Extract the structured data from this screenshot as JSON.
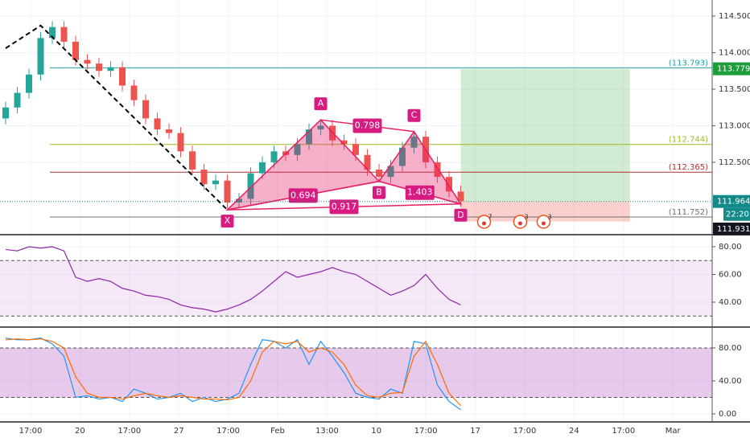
{
  "chart_data": [
    {
      "type": "candlestick",
      "ylim": [
        111.51,
        114.72
      ],
      "yticks": [
        {
          "value": 114.5,
          "label": "114.500"
        },
        {
          "value": 114.0,
          "label": "114.000"
        },
        {
          "value": 113.5,
          "label": "113.500"
        },
        {
          "value": 113.0,
          "label": "113.000"
        },
        {
          "value": 112.5,
          "label": "112.500"
        }
      ],
      "up_color": "#26a69a",
      "down_color": "#ef5350",
      "open": [
        113.1,
        113.25,
        113.45,
        113.7,
        114.2,
        114.35,
        114.15,
        113.9,
        113.85,
        113.75,
        113.8,
        113.55,
        113.35,
        113.1,
        112.95,
        112.9,
        112.65,
        112.4,
        112.2,
        112.25,
        111.95,
        112.0,
        112.35,
        112.5,
        112.65,
        112.6,
        112.75,
        112.95,
        113.0,
        112.8,
        112.75,
        112.6,
        112.4,
        112.3,
        112.45,
        112.7,
        112.85,
        112.5,
        112.3,
        112.1
      ],
      "high": [
        113.33,
        113.53,
        113.78,
        114.28,
        114.43,
        114.43,
        114.23,
        113.98,
        113.93,
        113.88,
        113.88,
        113.63,
        113.43,
        113.18,
        113.03,
        112.98,
        112.73,
        112.48,
        112.33,
        112.33,
        112.08,
        112.43,
        112.58,
        112.73,
        112.73,
        112.83,
        113.03,
        113.08,
        113.08,
        112.88,
        112.83,
        112.68,
        112.48,
        112.53,
        112.78,
        112.93,
        112.93,
        112.58,
        112.38,
        112.18
      ],
      "low": [
        113.02,
        113.17,
        113.37,
        113.62,
        114.12,
        114.07,
        113.82,
        113.77,
        113.67,
        113.67,
        113.47,
        113.27,
        113.02,
        112.87,
        112.82,
        112.57,
        112.32,
        112.12,
        112.12,
        111.87,
        111.87,
        111.92,
        112.27,
        112.42,
        112.52,
        112.52,
        112.67,
        112.87,
        112.72,
        112.67,
        112.52,
        112.32,
        112.22,
        112.22,
        112.37,
        112.62,
        112.42,
        112.22,
        112.02,
        111.89
      ],
      "close": [
        113.25,
        113.45,
        113.7,
        114.2,
        114.35,
        114.15,
        113.9,
        113.85,
        113.75,
        113.8,
        113.55,
        113.35,
        113.1,
        112.95,
        112.9,
        112.65,
        112.4,
        112.2,
        112.25,
        111.95,
        112.0,
        112.35,
        112.5,
        112.65,
        112.6,
        112.75,
        112.95,
        113.0,
        112.8,
        112.75,
        112.6,
        112.4,
        112.3,
        112.45,
        112.7,
        112.85,
        112.5,
        112.3,
        112.1,
        111.97
      ],
      "levels": [
        {
          "value": 113.793,
          "label": "(113.793)",
          "color": "#22a0a0"
        },
        {
          "value": 112.744,
          "label": "(112.744)",
          "color": "#a0b820"
        },
        {
          "value": 112.365,
          "label": "(112.365)",
          "color": "#b03030"
        },
        {
          "value": 111.752,
          "label": "(111.752)",
          "color": "#707070"
        }
      ],
      "price_badges": [
        {
          "value": 113.779,
          "label": "113.779",
          "color": "#1e9e3a"
        },
        {
          "value": 111.964,
          "label": "111.964",
          "color": "#138a8a"
        }
      ],
      "time_badge": "22:20",
      "last_badge": "111.931",
      "trend": {
        "x": [
          0,
          3,
          19
        ],
        "y": [
          114.06,
          114.37,
          111.85
        ]
      },
      "pattern": {
        "names": [
          "X",
          "A",
          "B",
          "C",
          "D"
        ],
        "x": [
          19,
          27,
          32,
          35,
          39
        ],
        "y": [
          111.85,
          113.08,
          112.24,
          112.92,
          111.93
        ],
        "ratios": [
          0.798,
          0.694,
          1.403,
          0.917
        ]
      },
      "position": {
        "x": [
          39,
          53.5
        ],
        "entry": 111.964,
        "target": 113.779,
        "stop": 111.69
      },
      "events": {
        "x": [
          41,
          44.1,
          46.1
        ],
        "labels": [
          "7",
          "3",
          "3"
        ]
      }
    },
    {
      "type": "line",
      "ylim": [
        22.03,
        86.96
      ],
      "yticks": [
        {
          "value": 80,
          "label": "80.00"
        },
        {
          "value": 60,
          "label": "60.00"
        },
        {
          "value": 40,
          "label": "40.00"
        }
      ],
      "band": [
        70,
        30
      ],
      "series": [
        {
          "color": "#8e24aa",
          "values": [
            78,
            77,
            80,
            79,
            80,
            77,
            58,
            55,
            57,
            55,
            50,
            48,
            45,
            44,
            42,
            38,
            36,
            35,
            33,
            35,
            38,
            42,
            48,
            55,
            62,
            58,
            60,
            62,
            65,
            62,
            60,
            55,
            50,
            45,
            48,
            52,
            60,
            50,
            42,
            38
          ]
        }
      ]
    },
    {
      "type": "line",
      "ylim": [
        -9.76,
        102.4
      ],
      "yticks": [
        {
          "value": 80,
          "label": "80.00"
        },
        {
          "value": 40,
          "label": "40.00"
        },
        {
          "value": 0,
          "label": "0.00"
        }
      ],
      "band": [
        80,
        20
      ],
      "series": [
        {
          "color": "#2196f3",
          "values": [
            92,
            90,
            90,
            92,
            85,
            70,
            20,
            22,
            18,
            20,
            15,
            30,
            25,
            18,
            20,
            25,
            15,
            20,
            15,
            18,
            25,
            60,
            90,
            88,
            80,
            90,
            60,
            88,
            70,
            50,
            25,
            20,
            18,
            30,
            25,
            88,
            85,
            35,
            15,
            5
          ]
        },
        {
          "color": "#ff6d00",
          "values": [
            90,
            91,
            90,
            91,
            88,
            80,
            45,
            25,
            20,
            20,
            18,
            22,
            25,
            22,
            20,
            22,
            20,
            18,
            18,
            17,
            20,
            40,
            75,
            88,
            85,
            88,
            75,
            80,
            75,
            60,
            35,
            22,
            20,
            25,
            26,
            70,
            88,
            60,
            25,
            10
          ]
        }
      ]
    },
    {
      "type": "axis",
      "categories": [
        "17:00",
        "20",
        "17:00",
        "27",
        "17:00",
        "Feb",
        "13:00",
        "10",
        "17:00",
        "17",
        "17:00",
        "24",
        "17:00",
        "Mar"
      ]
    }
  ]
}
